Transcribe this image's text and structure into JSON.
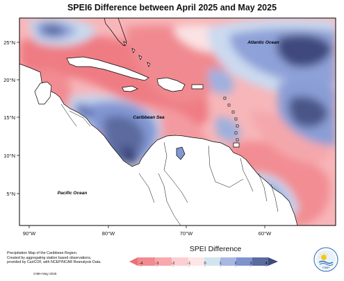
{
  "title": "SPEI6 Difference between April 2025 and May 2025",
  "map": {
    "region": "Caribbean",
    "lat_labels": [
      "25°N",
      "20°N",
      "15°N",
      "10°N",
      "5°N"
    ],
    "lon_labels": [
      "90°W",
      "80°W",
      "70°W",
      "60°W"
    ],
    "place_labels": [
      "Atlantic Ocean",
      "Caribbean Sea",
      "Pacific Ocean"
    ]
  },
  "legend": {
    "title": "SPEI Difference",
    "ticks": [
      "-4",
      "-3",
      "-2",
      "-1",
      "0",
      "1",
      "2",
      "3",
      "4"
    ],
    "colors": [
      "#ee6f76",
      "#f59ba0",
      "#f9c4c7",
      "#fce2e2",
      "#d3e4ef",
      "#a9b8e2",
      "#7f93cf",
      "#5b6a9f",
      "#3f4a7e"
    ]
  },
  "caption": {
    "lines": [
      "Precipitation Map of the Caribbean Region.",
      "Created by aggregating station based observations,",
      "provided by CariCOF, with NCEP/NCAR Reanalysis Data."
    ],
    "stamp": "CIMH May-2025"
  },
  "logo": {
    "text": "CIMH"
  }
}
